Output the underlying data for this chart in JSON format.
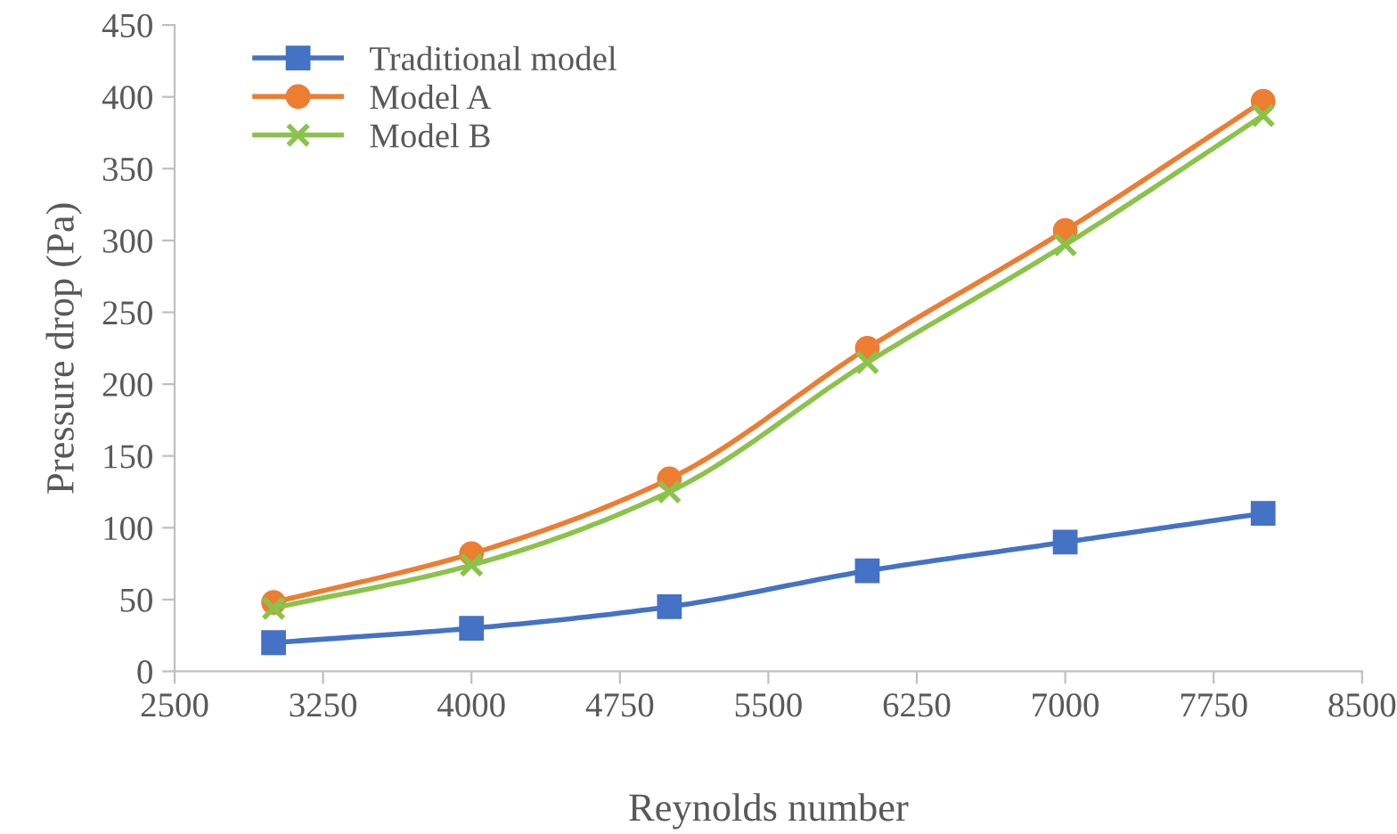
{
  "chart_data": {
    "type": "line",
    "xlabel": "Reynolds number",
    "ylabel": "Pressure drop (Pa)",
    "x": [
      3000,
      4000,
      5000,
      6000,
      7000,
      8000
    ],
    "xlim": [
      2500,
      8500
    ],
    "xticks": [
      2500,
      3250,
      4000,
      4750,
      5500,
      6250,
      7000,
      7750,
      8500
    ],
    "ylim": [
      0,
      450
    ],
    "yticks": [
      0,
      50,
      100,
      150,
      200,
      250,
      300,
      350,
      400,
      450
    ],
    "grid": false,
    "legend": "top left",
    "series": [
      {
        "name": "Traditional model",
        "color": "#4472c4",
        "marker": "square",
        "values": [
          20,
          30,
          45,
          70,
          90,
          110
        ]
      },
      {
        "name": "Model A",
        "color": "#ed7d31",
        "marker": "circle",
        "values": [
          48,
          82,
          134,
          225,
          307,
          397
        ]
      },
      {
        "name": "Model B",
        "color": "#8bc34a",
        "marker": "cross",
        "values": [
          44,
          74,
          125,
          215,
          297,
          387
        ]
      }
    ]
  }
}
